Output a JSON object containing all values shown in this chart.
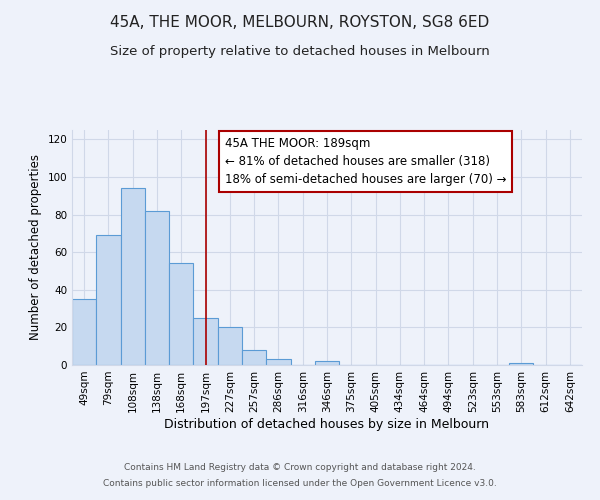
{
  "title": "45A, THE MOOR, MELBOURN, ROYSTON, SG8 6ED",
  "subtitle": "Size of property relative to detached houses in Melbourn",
  "xlabel": "Distribution of detached houses by size in Melbourn",
  "ylabel": "Number of detached properties",
  "categories": [
    "49sqm",
    "79sqm",
    "108sqm",
    "138sqm",
    "168sqm",
    "197sqm",
    "227sqm",
    "257sqm",
    "286sqm",
    "316sqm",
    "346sqm",
    "375sqm",
    "405sqm",
    "434sqm",
    "464sqm",
    "494sqm",
    "523sqm",
    "553sqm",
    "583sqm",
    "612sqm",
    "642sqm"
  ],
  "values": [
    35,
    69,
    94,
    82,
    54,
    25,
    20,
    8,
    3,
    0,
    2,
    0,
    0,
    0,
    0,
    0,
    0,
    0,
    1,
    0,
    0
  ],
  "bar_color": "#c6d9f0",
  "bar_edge_color": "#5b9bd5",
  "red_line_index": 5,
  "red_line_color": "#aa0000",
  "annotation_text": "45A THE MOOR: 189sqm\n← 81% of detached houses are smaller (318)\n18% of semi-detached houses are larger (70) →",
  "annotation_box_color": "#ffffff",
  "annotation_box_edge_color": "#aa0000",
  "ylim": [
    0,
    125
  ],
  "yticks": [
    0,
    20,
    40,
    60,
    80,
    100,
    120
  ],
  "grid_color": "#d0d8e8",
  "background_color": "#eef2fa",
  "footer_line1": "Contains HM Land Registry data © Crown copyright and database right 2024.",
  "footer_line2": "Contains public sector information licensed under the Open Government Licence v3.0.",
  "title_fontsize": 11,
  "subtitle_fontsize": 9.5,
  "xlabel_fontsize": 9,
  "ylabel_fontsize": 8.5,
  "tick_fontsize": 7.5,
  "annotation_fontsize": 8.5,
  "footer_fontsize": 6.5
}
